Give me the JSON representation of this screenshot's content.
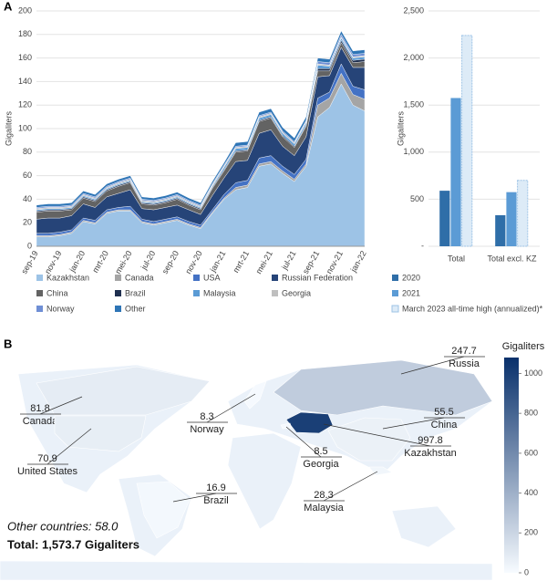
{
  "panels": [
    "A",
    "B"
  ],
  "chart_data": [
    {
      "type": "area",
      "y_label": "Gigaliters",
      "categories": [
        "sep-19",
        null,
        "nov-19",
        null,
        "jan-20",
        null,
        "mrt-20",
        null,
        "mei-20",
        null,
        "jul-20",
        null,
        "sep-20",
        null,
        "nov-20",
        null,
        "jan-21",
        null,
        "mrt-21",
        null,
        "mei-21",
        null,
        "jul-21",
        null,
        "sep-21",
        null,
        "nov-21",
        null,
        "jan-22"
      ],
      "ylim": [
        0,
        200
      ],
      "yticks": [
        0,
        20,
        40,
        60,
        80,
        100,
        120,
        140,
        160,
        180,
        200
      ],
      "series": [
        {
          "name": "Kazakhstan",
          "color": "#9dc3e6",
          "values": [
            8,
            8,
            9,
            11,
            21,
            19,
            28,
            30,
            30,
            20,
            18,
            20,
            22,
            18,
            15,
            28,
            40,
            48,
            50,
            68,
            70,
            62,
            55,
            68,
            110,
            118,
            138,
            120,
            115
          ]
        },
        {
          "name": "Canada",
          "color": "#a5a5a5",
          "values": [
            1,
            1,
            1,
            1,
            1,
            1,
            1,
            1,
            1,
            1,
            1,
            1,
            1,
            1,
            1,
            1,
            1,
            2,
            2,
            2,
            2,
            2,
            2,
            2,
            10,
            8,
            9,
            9,
            10
          ]
        },
        {
          "name": "USA",
          "color": "#4472c4",
          "values": [
            2,
            2,
            2,
            2,
            2,
            2,
            2,
            2,
            3,
            2,
            2,
            2,
            2,
            2,
            2,
            2,
            3,
            4,
            4,
            5,
            5,
            4,
            4,
            4,
            6,
            5,
            8,
            7,
            8
          ]
        },
        {
          "name": "Russian Federation",
          "color": "#264478",
          "values": [
            12,
            13,
            12,
            12,
            12,
            11,
            11,
            12,
            14,
            9,
            10,
            10,
            10,
            10,
            9,
            12,
            14,
            18,
            17,
            21,
            22,
            17,
            16,
            19,
            18,
            14,
            14,
            16,
            19
          ]
        },
        {
          "name": "China",
          "color": "#636363",
          "values": [
            6,
            6,
            6,
            5,
            5,
            5,
            5,
            6,
            6,
            4,
            4,
            4,
            5,
            4,
            4,
            6,
            6,
            8,
            8,
            10,
            10,
            8,
            7,
            9,
            5,
            4,
            4,
            4,
            5
          ]
        },
        {
          "name": "Brazil",
          "color": "#1f2f4f",
          "values": [
            1,
            1,
            1,
            1,
            1,
            1,
            1,
            1,
            1,
            1,
            1,
            1,
            1,
            1,
            1,
            1,
            1,
            1,
            1,
            1,
            1,
            1,
            1,
            1,
            2,
            2,
            2,
            2,
            2
          ]
        },
        {
          "name": "Malaysia",
          "color": "#5b9bd5",
          "values": [
            1,
            1,
            1,
            1,
            1,
            1,
            1,
            1,
            1,
            1,
            1,
            1,
            1,
            1,
            1,
            1,
            2,
            2,
            2,
            2,
            2,
            2,
            2,
            2,
            3,
            2,
            2,
            2,
            2
          ]
        },
        {
          "name": "Georgia",
          "color": "#bfbfbf",
          "values": [
            1,
            1,
            1,
            1,
            1,
            1,
            1,
            1,
            1,
            1,
            1,
            1,
            1,
            1,
            1,
            1,
            1,
            1,
            1,
            1,
            1,
            1,
            1,
            1,
            1,
            1,
            1,
            1,
            1
          ]
        },
        {
          "name": "Norway",
          "color": "#6f8fd5",
          "values": [
            1,
            1,
            1,
            1,
            1,
            1,
            1,
            1,
            1,
            1,
            1,
            1,
            1,
            1,
            1,
            1,
            1,
            1,
            1,
            1,
            1,
            1,
            1,
            1,
            2,
            2,
            2,
            2,
            2
          ]
        },
        {
          "name": "Other",
          "color": "#2e75b6",
          "values": [
            2,
            2,
            2,
            2,
            2,
            2,
            2,
            2,
            2,
            2,
            2,
            2,
            2,
            2,
            2,
            2,
            2,
            3,
            3,
            3,
            3,
            3,
            3,
            3,
            3,
            3,
            3,
            3,
            3
          ]
        }
      ]
    },
    {
      "type": "bar",
      "y_label": "Gigaliters",
      "categories": [
        "Total",
        "Total excl. KZ"
      ],
      "ylim": [
        0,
        2500
      ],
      "yticks": [
        {
          "value": 0,
          "label": "-"
        },
        500,
        {
          "value": 1000,
          "label": "1,000"
        },
        {
          "value": 1500,
          "label": "1,500"
        },
        {
          "value": 2000,
          "label": "2,000"
        },
        {
          "value": 2500,
          "label": "2,500"
        }
      ],
      "series": [
        {
          "name": "2020",
          "color": "#2f6ea8",
          "values": [
            590,
            330
          ]
        },
        {
          "name": "2021",
          "color": "#5b9bd5",
          "values": [
            1575,
            575
          ]
        },
        {
          "name": "March 2023 all-time high (annualized)*",
          "color": "#ddebf7",
          "outline": "#9dc3e6",
          "values": [
            2240,
            700
          ]
        }
      ]
    },
    {
      "type": "choropleth",
      "colorbar_title": "Gigaliters",
      "zlim": [
        0,
        1080
      ],
      "zticks": [
        0,
        200,
        400,
        600,
        800,
        1000
      ],
      "colors": [
        "#f7fbff",
        "#08306b"
      ],
      "regions": [
        {
          "name": "Russia",
          "value": 247.7
        },
        {
          "name": "Canada",
          "value": 81.8
        },
        {
          "name": "Norway",
          "value": 8.3
        },
        {
          "name": "China",
          "value": 55.5
        },
        {
          "name": "Kazakhstan",
          "value": 997.8
        },
        {
          "name": "United States",
          "value": 70.9
        },
        {
          "name": "Georgia",
          "value": 8.5
        },
        {
          "name": "Brazil",
          "value": 16.9
        },
        {
          "name": "Malaysia",
          "value": 28.3
        }
      ],
      "annotations": [
        "Other countries: 58.0",
        "Total: 1,573.7 Gigaliters"
      ]
    }
  ]
}
